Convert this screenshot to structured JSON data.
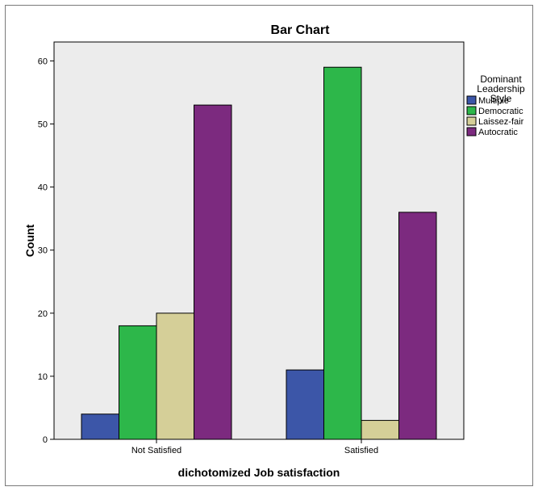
{
  "chart_data": {
    "type": "bar",
    "title": "Bar Chart",
    "xlabel": "dichotomized Job satisfaction",
    "ylabel": "Count",
    "categories": [
      "Not Satisfied",
      "Satisfied"
    ],
    "ylim": [
      0,
      63
    ],
    "yticks": [
      0,
      10,
      20,
      30,
      40,
      50,
      60
    ],
    "grid": false,
    "legend": {
      "title_lines": [
        "Dominant",
        "Leadership",
        "Style"
      ],
      "placement": "right"
    },
    "series": [
      {
        "name": "Multiple",
        "color": "#3c56a8",
        "values": [
          4,
          11
        ]
      },
      {
        "name": "Democratic",
        "color": "#2db74a",
        "values": [
          18,
          59
        ]
      },
      {
        "name": "Laissez-fair",
        "color": "#d5cf98",
        "values": [
          20,
          3
        ]
      },
      {
        "name": "Autocratic",
        "color": "#7c2a7f",
        "values": [
          53,
          36
        ]
      }
    ]
  },
  "colors": {
    "plot_background": "#ececec",
    "outer_background": "#ffffff"
  }
}
